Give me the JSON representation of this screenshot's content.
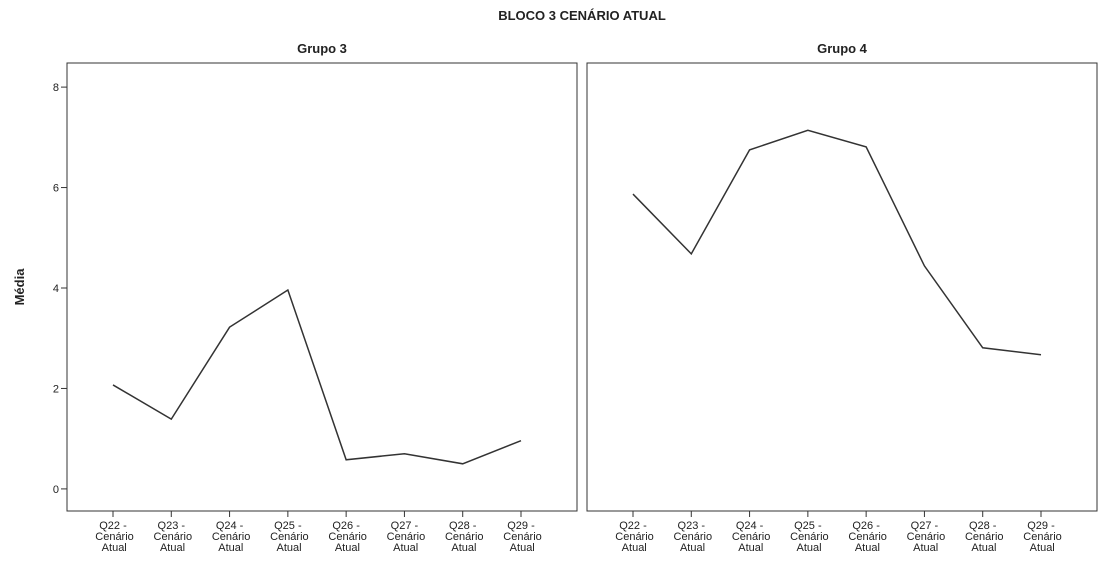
{
  "title": "BLOCO 3 CENÁRIO ATUAL",
  "ylabel": "Média",
  "chart_data": [
    {
      "type": "line",
      "title": "Grupo 3",
      "categories": [
        "Q22 - Cenário Atual",
        "Q23 - Cenário Atual",
        "Q24 - Cenário Atual",
        "Q25 - Cenário Atual",
        "Q26 - Cenário Atual",
        "Q27 - Cenário Atual",
        "Q28 - Cenário Atual",
        "Q29 - Cenário Atual"
      ],
      "values": [
        2.07,
        1.39,
        3.22,
        3.96,
        0.58,
        0.7,
        0.5,
        0.96
      ],
      "color": "#333333",
      "ylim": [
        -0.44,
        8.48
      ],
      "yticks": [
        0,
        2,
        4,
        6,
        8
      ]
    },
    {
      "type": "line",
      "title": "Grupo 4",
      "categories": [
        "Q22 - Cenário Atual",
        "Q23 - Cenário Atual",
        "Q24 - Cenário Atual",
        "Q25 - Cenário Atual",
        "Q26 - Cenário Atual",
        "Q27 - Cenário Atual",
        "Q28 - Cenário Atual",
        "Q29 - Cenário Atual"
      ],
      "values": [
        5.87,
        4.68,
        6.75,
        7.14,
        6.81,
        4.44,
        2.81,
        2.67
      ],
      "color": "#333333",
      "ylim": [
        -0.44,
        8.48
      ]
    }
  ]
}
